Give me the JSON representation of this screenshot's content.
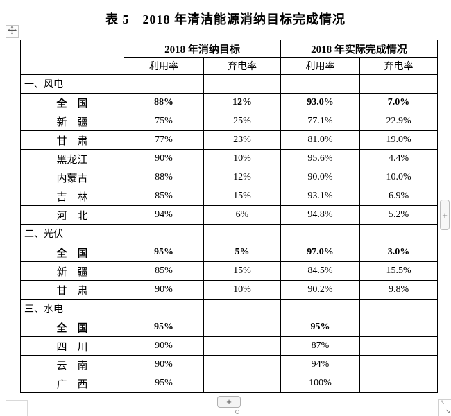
{
  "page": {
    "title": "表 5　2018 年清洁能源消纳目标完成情况"
  },
  "table": {
    "column_groups": [
      {
        "label": "2018 年消纳目标"
      },
      {
        "label": "2018 年实际完成情况"
      }
    ],
    "sub_headers": [
      "利用率",
      "弃电率",
      "利用率",
      "弃电率"
    ],
    "sections": [
      {
        "label": "一、风电",
        "rows": [
          {
            "name": "全　国",
            "bold": true,
            "values": [
              "88%",
              "12%",
              "93.0%",
              "7.0%"
            ]
          },
          {
            "name": "新　疆",
            "bold": false,
            "values": [
              "75%",
              "25%",
              "77.1%",
              "22.9%"
            ]
          },
          {
            "name": "甘　肃",
            "bold": false,
            "values": [
              "77%",
              "23%",
              "81.0%",
              "19.0%"
            ]
          },
          {
            "name": "黑龙江",
            "bold": false,
            "values": [
              "90%",
              "10%",
              "95.6%",
              "4.4%"
            ]
          },
          {
            "name": "内蒙古",
            "bold": false,
            "values": [
              "88%",
              "12%",
              "90.0%",
              "10.0%"
            ]
          },
          {
            "name": "吉　林",
            "bold": false,
            "values": [
              "85%",
              "15%",
              "93.1%",
              "6.9%"
            ]
          },
          {
            "name": "河　北",
            "bold": false,
            "values": [
              "94%",
              "6%",
              "94.8%",
              "5.2%"
            ]
          }
        ]
      },
      {
        "label": "二、光伏",
        "rows": [
          {
            "name": "全　国",
            "bold": true,
            "values": [
              "95%",
              "5%",
              "97.0%",
              "3.0%"
            ]
          },
          {
            "name": "新　疆",
            "bold": false,
            "values": [
              "85%",
              "15%",
              "84.5%",
              "15.5%"
            ]
          },
          {
            "name": "甘　肃",
            "bold": false,
            "values": [
              "90%",
              "10%",
              "90.2%",
              "9.8%"
            ]
          }
        ]
      },
      {
        "label": "三、水电",
        "rows": [
          {
            "name": "全　国",
            "bold": true,
            "values": [
              "95%",
              "",
              "95%",
              ""
            ]
          },
          {
            "name": "四　川",
            "bold": false,
            "values": [
              "90%",
              "",
              "87%",
              ""
            ]
          },
          {
            "name": "云　南",
            "bold": false,
            "values": [
              "90%",
              "",
              "94%",
              ""
            ]
          },
          {
            "name": "广　西",
            "bold": false,
            "values": [
              "95%",
              "",
              "100%",
              ""
            ]
          }
        ]
      }
    ]
  },
  "controls": {
    "side_add_label": "+",
    "bottom_add_label": "+",
    "resize_up_left_glyph": "↖",
    "resize_down_right_glyph": "↘"
  },
  "colors": {
    "table_border": "#000000",
    "text": "#000000",
    "control_border": "#b8b8b8",
    "control_bg": "#f5f5f5",
    "faint_line": "#d9d9d9"
  }
}
